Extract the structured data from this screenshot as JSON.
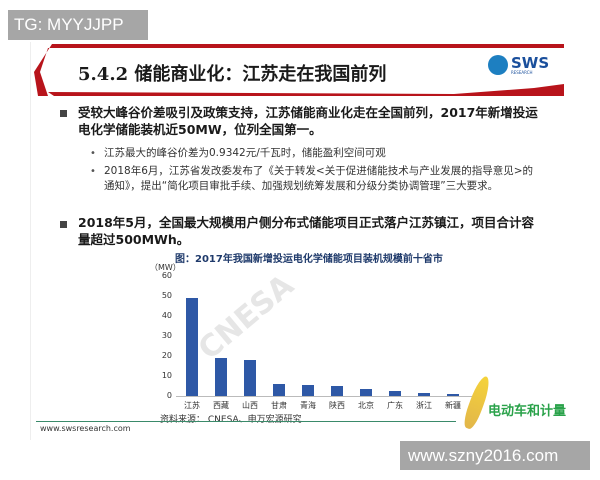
{
  "watermark_top": "TG: MYYJJPP",
  "watermark_bottom": "www.szny2016.com",
  "slide": {
    "title": "5.4.2 储能商业化：江苏走在我国前列",
    "logo_text": "SWS",
    "logo_sub": "RESEARCH",
    "bullets": [
      {
        "text": "受较大峰谷价差吸引及政策支持，江苏储能商业化走在全国前列，2017年新增投运电化学储能装机近50MW，位列全国第一。",
        "sub": [
          "江苏最大的峰谷价差为0.9342元/千瓦时，储能盈利空间可观",
          "2018年6月，江苏省发改委发布了《关于转发<关于促进储能技术与产业发展的指导意见>的通知》，提出“简化项目审批手续、加强规划统筹发展和分级分类协调管理”三大要求。"
        ]
      },
      {
        "text": "2018年5月，全国最大规模用户侧分布式储能项目正式落户江苏镇江，项目合计容量超过500MWh。",
        "sub": []
      }
    ],
    "source": "资料来源： CNESA、申万宏源研究",
    "footer_url": "www.swsresearch.com",
    "chart_watermark": "CNESA",
    "badge": "电动车和计量"
  },
  "chart_data": {
    "type": "bar",
    "title": "图：2017年我国新增投运电化学储能项目装机规模前十省市",
    "ylabel": "（MW）",
    "ylim": [
      0,
      60
    ],
    "yticks": [
      0,
      10,
      20,
      30,
      40,
      50,
      60
    ],
    "categories": [
      "江苏",
      "西藏",
      "山西",
      "甘肃",
      "青海",
      "陕西",
      "北京",
      "广东",
      "浙江",
      "新疆"
    ],
    "values": [
      49,
      19,
      18,
      6,
      5.5,
      5,
      3.5,
      2.5,
      1.5,
      1.2
    ],
    "color": "#2e58a6"
  }
}
